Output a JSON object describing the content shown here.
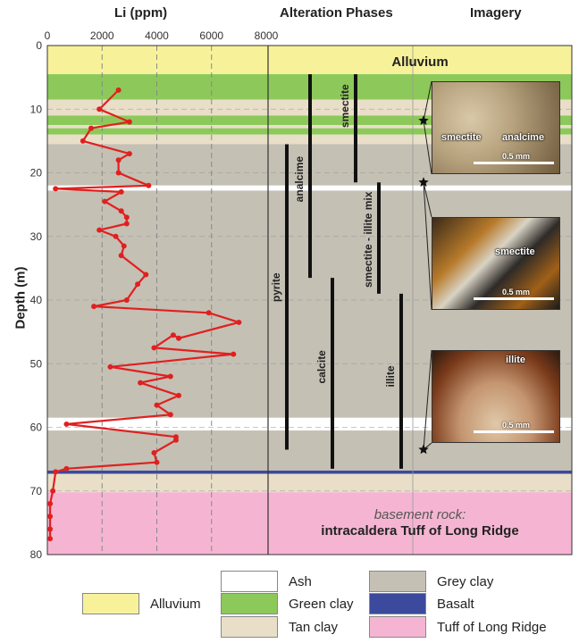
{
  "headers": {
    "li": "Li (ppm)",
    "alteration": "Alteration Phases",
    "imagery": "Imagery"
  },
  "yaxis_label": "Depth (m)",
  "layers_labels": {
    "alluvium": "Alluvium",
    "basement_line1": "basement rock:",
    "basement_line2": "intracaldera Tuff of Long Ridge"
  },
  "legend": [
    {
      "label": "Alluvium",
      "color": "#f7f29a"
    },
    {
      "label": "Ash",
      "color": "#ffffff"
    },
    {
      "label": "Green clay",
      "color": "#8dc95a"
    },
    {
      "label": "Tan clay",
      "color": "#e9dfc8"
    },
    {
      "label": "Grey clay",
      "color": "#c4c0b4"
    },
    {
      "label": "Basalt",
      "color": "#3b4a9c"
    },
    {
      "label": "Tuff of Long Ridge",
      "color": "#f5b5d2"
    }
  ],
  "photos": [
    {
      "labels": [
        "smectite",
        "analcime"
      ],
      "scale": "0.5 mm"
    },
    {
      "labels": [
        "smectite"
      ],
      "scale": "0.5 mm"
    },
    {
      "labels": [
        "illite"
      ],
      "scale": "0.5 mm"
    }
  ],
  "chart_data": {
    "type": "line",
    "xlabel": "Li (ppm)",
    "ylabel": "Depth (m)",
    "xlim": [
      0,
      8000
    ],
    "ylim": [
      0,
      80
    ],
    "x_ticks": [
      0,
      2000,
      4000,
      6000,
      8000
    ],
    "y_ticks": [
      0,
      10,
      20,
      30,
      40,
      50,
      60,
      70,
      80
    ],
    "grid": true,
    "series": [
      {
        "name": "",
        "color": "#e02020",
        "points": [
          [
            2600,
            7
          ],
          [
            1900,
            10
          ],
          [
            3000,
            12
          ],
          [
            1600,
            13
          ],
          [
            1300,
            15
          ],
          [
            3000,
            17
          ],
          [
            2600,
            18
          ],
          [
            2600,
            20
          ],
          [
            3700,
            22
          ],
          [
            300,
            22.5
          ],
          [
            2700,
            23
          ],
          [
            2100,
            24.5
          ],
          [
            2700,
            26
          ],
          [
            2900,
            27
          ],
          [
            2900,
            28
          ],
          [
            1900,
            29
          ],
          [
            2500,
            30
          ],
          [
            2800,
            31.5
          ],
          [
            2700,
            33
          ],
          [
            3600,
            36
          ],
          [
            3300,
            37.5
          ],
          [
            2900,
            40
          ],
          [
            1700,
            41
          ],
          [
            5900,
            42
          ],
          [
            7000,
            43.5
          ],
          [
            4800,
            46
          ],
          [
            4600,
            45.5
          ],
          [
            3900,
            47.5
          ],
          [
            6800,
            48.5
          ],
          [
            2300,
            50.5
          ],
          [
            4500,
            52
          ],
          [
            3400,
            53
          ],
          [
            4800,
            55
          ],
          [
            4000,
            56.5
          ],
          [
            4500,
            58
          ],
          [
            700,
            59.5
          ],
          [
            4700,
            61.5
          ],
          [
            4700,
            62
          ],
          [
            3900,
            64
          ],
          [
            4000,
            65.5
          ],
          [
            700,
            66.5
          ],
          [
            300,
            67
          ],
          [
            200,
            70
          ],
          [
            100,
            72
          ],
          [
            100,
            74
          ],
          [
            100,
            76
          ],
          [
            100,
            77.5
          ]
        ]
      }
    ],
    "layers": [
      {
        "type": "Alluvium",
        "top": 0,
        "bottom": 4.5
      },
      {
        "type": "Green clay",
        "top": 4.5,
        "bottom": 8.5
      },
      {
        "type": "Tan clay",
        "top": 8.5,
        "bottom": 11
      },
      {
        "type": "Green clay",
        "top": 11,
        "bottom": 12.5
      },
      {
        "type": "Tan clay",
        "top": 12.5,
        "bottom": 13
      },
      {
        "type": "Green clay",
        "top": 13,
        "bottom": 14
      },
      {
        "type": "Tan clay",
        "top": 14,
        "bottom": 15.5
      },
      {
        "type": "Grey clay",
        "top": 15.5,
        "bottom": 22
      },
      {
        "type": "Ash",
        "top": 22,
        "bottom": 22.8
      },
      {
        "type": "Grey clay",
        "top": 22.8,
        "bottom": 58.5
      },
      {
        "type": "Ash",
        "top": 58.5,
        "bottom": 60.5
      },
      {
        "type": "Grey clay",
        "top": 60.5,
        "bottom": 66.8
      },
      {
        "type": "Basalt",
        "top": 66.8,
        "bottom": 67.3
      },
      {
        "type": "Tan clay",
        "top": 67.3,
        "bottom": 70.2
      },
      {
        "type": "Tuff of Long Ridge",
        "top": 70.2,
        "bottom": 80
      }
    ],
    "phases": [
      {
        "name": "pyrite",
        "top": 15.5,
        "bottom": 63.5
      },
      {
        "name": "analcime",
        "top": 4.5,
        "bottom": 36.5
      },
      {
        "name": "calcite",
        "top": 36.5,
        "bottom": 66.5
      },
      {
        "name": "smectite",
        "top": 4.5,
        "bottom": 21.5
      },
      {
        "name": "smectite - illite mix",
        "top": 21.5,
        "bottom": 39
      },
      {
        "name": "illite",
        "top": 39,
        "bottom": 66.5
      }
    ],
    "markers_depth": [
      11.8,
      21.5,
      63.5
    ]
  }
}
